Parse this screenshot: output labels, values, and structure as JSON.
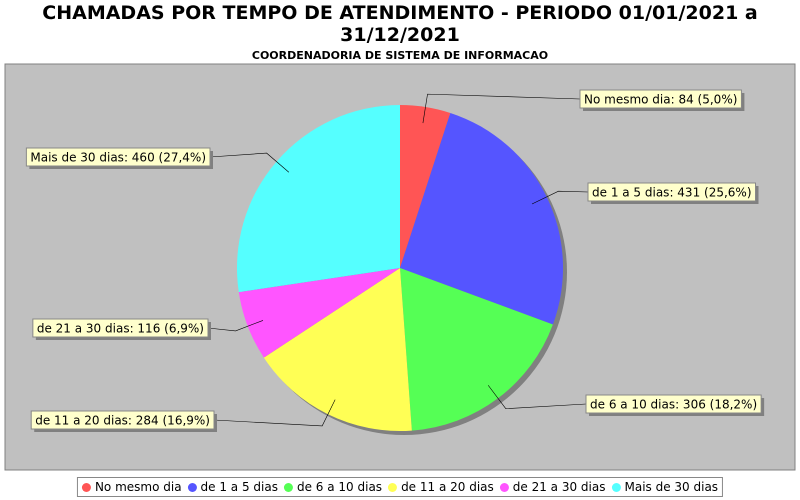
{
  "chart_data": {
    "type": "pie",
    "title": "CHAMADAS POR TEMPO DE ATENDIMENTO - PERIODO 01/01/2021 a 31/12/2021",
    "subtitle": "COORDENADORIA DE SISTEMA DE INFORMACAO",
    "categories": [
      "No mesmo dia",
      "de 1 a 5 dias",
      "de 6 a 10 dias",
      "de 11 a 20 dias",
      "de 21 a 30 dias",
      "Mais de 30 dias"
    ],
    "values": [
      84,
      431,
      306,
      284,
      116,
      460
    ],
    "value_labels": [
      "No mesmo dia: 84 (5,0%)",
      "de 1 a 5 dias: 431 (25,6%)",
      "de 6 a 10 dias: 306 (18,2%)",
      "de 11 a 20 dias: 284 (16,9%)",
      "de 21 a 30 dias: 116 (6,9%)",
      "Mais de 30 dias: 460 (27,4%)"
    ],
    "colors": [
      "#ff5555",
      "#5555ff",
      "#55ff55",
      "#ffff55",
      "#ff55ff",
      "#55ffff"
    ],
    "legend": "bottom"
  }
}
